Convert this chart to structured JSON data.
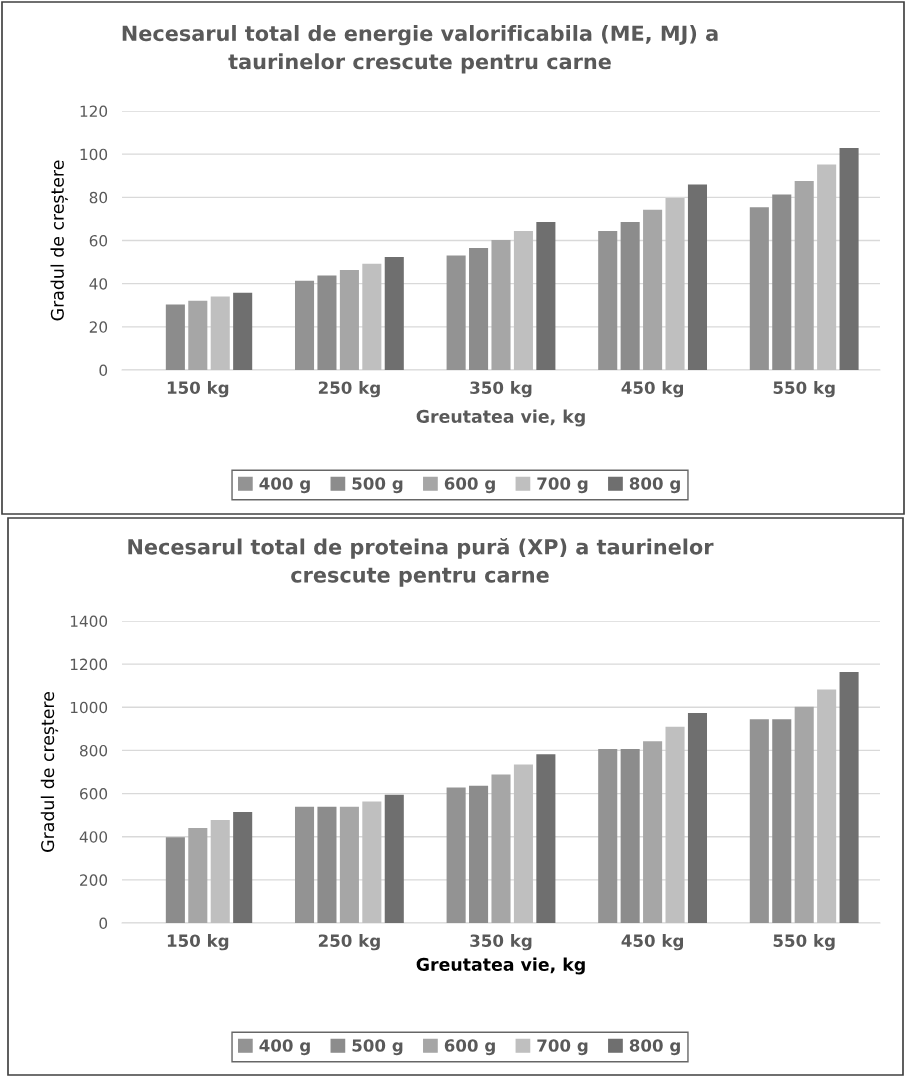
{
  "chart_data": [
    {
      "type": "bar",
      "title": "Necesarul total de energie valorificabila (ME, MJ) a\ntaurinelor crescute pentru carne",
      "xlabel": "Greutatea vie, kg",
      "ylabel": "Gradul de creștere",
      "categories": [
        "150 kg",
        "250 kg",
        "350 kg",
        "450 kg",
        "550 kg"
      ],
      "series": [
        {
          "name": "400 g",
          "color": "#939393",
          "values": [
            null,
            41.3,
            53.1,
            64.4,
            75.4
          ]
        },
        {
          "name": "500 g",
          "color": "#8c8c8c",
          "values": [
            30.3,
            43.8,
            56.5,
            68.6,
            81.3
          ]
        },
        {
          "name": "600 g",
          "color": "#a6a6a6",
          "values": [
            32.1,
            46.3,
            60.2,
            74.2,
            87.6
          ]
        },
        {
          "name": "700 g",
          "color": "#bfbfbf",
          "values": [
            34.1,
            49.2,
            64.4,
            79.7,
            95.2
          ]
        },
        {
          "name": "800 g",
          "color": "#6f6f6f",
          "values": [
            35.8,
            52.3,
            68.6,
            85.9,
            102.8
          ]
        }
      ],
      "ylim": [
        0,
        120
      ],
      "yticks": [
        0,
        20,
        40,
        60,
        80,
        100,
        120
      ],
      "grid": "y",
      "legend": "bottom"
    },
    {
      "type": "bar",
      "title": "Necesarul total de proteina pură (XP) a taurinelor\ncrescute pentru carne",
      "xlabel": "Greutatea vie, kg",
      "ylabel": "Gradul de creștere",
      "categories": [
        "150 kg",
        "250 kg",
        "350 kg",
        "450 kg",
        "550 kg"
      ],
      "series": [
        {
          "name": "400 g",
          "color": "#939393",
          "values": [
            null,
            539,
            628,
            807,
            944
          ]
        },
        {
          "name": "500 g",
          "color": "#8c8c8c",
          "values": [
            397,
            539,
            636,
            807,
            944
          ]
        },
        {
          "name": "600 g",
          "color": "#a6a6a6",
          "values": [
            440,
            539,
            688,
            843,
            1002
          ]
        },
        {
          "name": "700 g",
          "color": "#bfbfbf",
          "values": [
            478,
            563,
            735,
            910,
            1082
          ]
        },
        {
          "name": "800 g",
          "color": "#6f6f6f",
          "values": [
            514,
            594,
            782,
            974,
            1164
          ]
        }
      ],
      "ylim": [
        0,
        1400
      ],
      "yticks": [
        0,
        200,
        400,
        600,
        800,
        1000,
        1200,
        1400
      ],
      "grid": "y",
      "legend": "bottom"
    }
  ]
}
